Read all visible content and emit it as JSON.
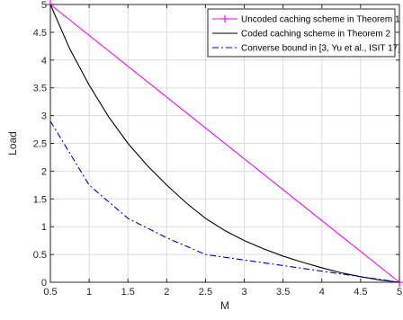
{
  "chart_data": {
    "type": "line",
    "title": "",
    "xlabel": "M",
    "ylabel": "Load",
    "xlim": [
      0.5,
      5
    ],
    "ylim": [
      0,
      5
    ],
    "xticks": [
      "0.5",
      "1",
      "1.5",
      "2",
      "2.5",
      "3",
      "3.5",
      "4",
      "4.5",
      "5"
    ],
    "yticks": [
      "0",
      "0.5",
      "1",
      "1.5",
      "2",
      "2.5",
      "3",
      "3.5",
      "4",
      "4.5",
      "5"
    ],
    "grid": true,
    "legend_position": "top-right",
    "series": [
      {
        "name": "Uncoded caching scheme in Theorem 1",
        "color": "#ff00ff",
        "style": "solid",
        "marker": "plus",
        "x": [
          0.5,
          5
        ],
        "y": [
          5,
          0
        ]
      },
      {
        "name": "Coded caching scheme in Theorem 2",
        "color": "#000000",
        "style": "solid",
        "marker": "none",
        "x": [
          0.5,
          0.75,
          1,
          1.25,
          1.5,
          1.75,
          2,
          2.25,
          2.5,
          2.75,
          3,
          3.25,
          3.5,
          3.75,
          4,
          4.25,
          4.5,
          4.75,
          5
        ],
        "y": [
          5,
          4.2,
          3.55,
          2.98,
          2.5,
          2.1,
          1.75,
          1.43,
          1.15,
          0.93,
          0.75,
          0.6,
          0.47,
          0.36,
          0.26,
          0.17,
          0.1,
          0.04,
          0
        ]
      },
      {
        "name": "Converse bound in [3, Yu et al., ISIT 17]",
        "color": "#0000cc",
        "style": "dashdot",
        "marker": "none",
        "x": [
          0.5,
          1,
          1.5,
          2,
          2.5,
          3,
          3.5,
          4,
          4.5,
          5
        ],
        "y": [
          2.9,
          1.75,
          1.15,
          0.8,
          0.5,
          0.4,
          0.3,
          0.2,
          0.1,
          0
        ]
      }
    ]
  }
}
